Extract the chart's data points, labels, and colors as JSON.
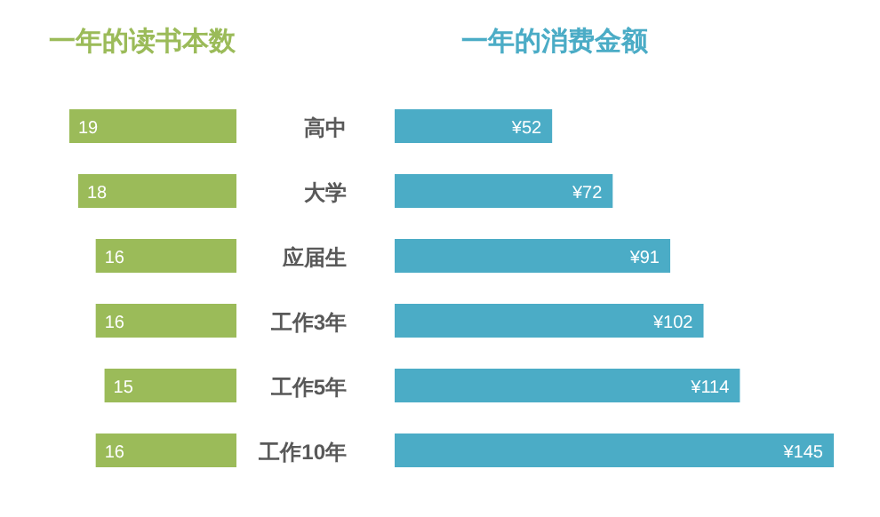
{
  "chart_data": [
    {
      "type": "bar",
      "orientation": "horizontal",
      "title": "一年的读书本数",
      "categories": [
        "高中",
        "大学",
        "应届生",
        "工作3年",
        "工作5年",
        "工作10年"
      ],
      "values": [
        19,
        18,
        16,
        16,
        15,
        16
      ],
      "color": "#9bbb59",
      "data_labels": true,
      "tick_labels": "y"
    },
    {
      "type": "bar",
      "orientation": "horizontal",
      "title": "一年的消费金额",
      "categories": [
        null,
        null,
        null,
        null,
        null,
        null
      ],
      "values": [
        52,
        72,
        91,
        102,
        114,
        145
      ],
      "value_labels": [
        "¥52",
        "¥72",
        "¥91",
        "¥102",
        "¥114",
        "¥145"
      ],
      "color": "#4bacc6",
      "tick_labels": false
    }
  ]
}
